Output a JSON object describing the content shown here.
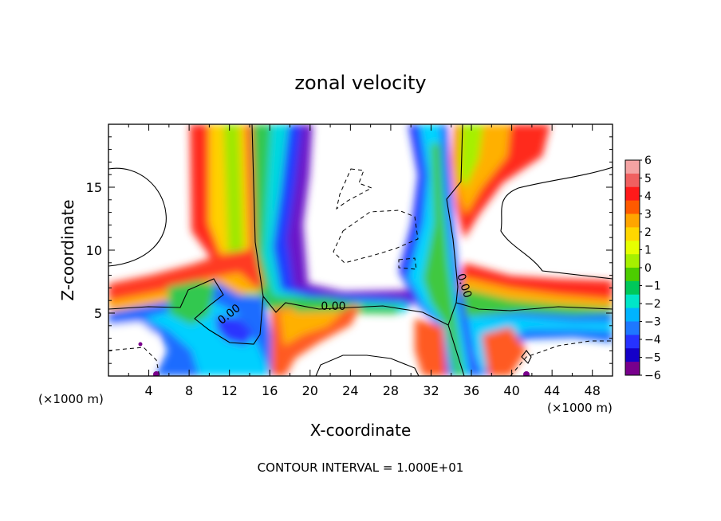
{
  "chart_data": {
    "type": "heatmap",
    "title": "zonal velocity",
    "xlabel": "X-coordinate",
    "ylabel": "Z-coordinate",
    "x_unit_label": "(×1000 m)",
    "x_unit_label_right": "(×1000 m)",
    "xlim": [
      0,
      50
    ],
    "ylim": [
      0,
      20
    ],
    "x_ticks": [
      4,
      8,
      12,
      16,
      20,
      24,
      28,
      32,
      36,
      40,
      44,
      48
    ],
    "x_tick_labels": [
      "4",
      "8",
      "12",
      "16",
      "20",
      "24",
      "28",
      "32",
      "36",
      "40",
      "44",
      "48"
    ],
    "y_ticks": [
      5,
      10,
      15
    ],
    "y_tick_labels": [
      "5",
      "10",
      "15"
    ],
    "colorbar": {
      "range": [
        -6,
        6
      ],
      "labels": [
        "6",
        "5",
        "4",
        "3",
        "2",
        "1",
        "0",
        "−1",
        "−2",
        "−3",
        "−4",
        "−5",
        "−6"
      ],
      "colors": [
        "#f4a3a3",
        "#f06060",
        "#ff1a1a",
        "#ff5a00",
        "#ffa500",
        "#ffd700",
        "#e6ff00",
        "#a6f000",
        "#4ccd00",
        "#00c85a",
        "#00e6c8",
        "#00b4ff",
        "#1e78ff",
        "#2632ff",
        "#1400c8",
        "#78008c"
      ]
    },
    "contour_labels": [
      "0.00",
      "0.00",
      "0.00"
    ],
    "footer": "CONTOUR INTERVAL = 1.000E+01"
  }
}
